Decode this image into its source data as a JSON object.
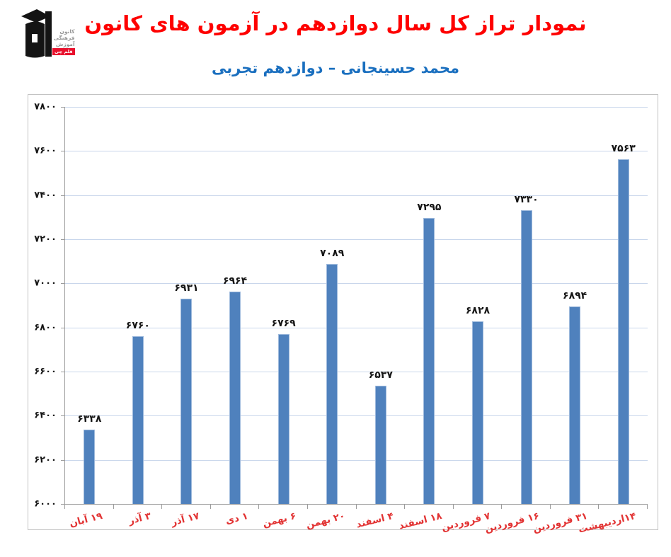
{
  "header": {
    "title": "نمودار تراز کل سال دوازدهم در آزمون های کانون",
    "subtitle": "محمد حسینجانی – دوازدهم تجربی",
    "logo": {
      "lines": [
        "کانون",
        "فرهنگی",
        "آموزش"
      ],
      "badge": "قلم چی"
    }
  },
  "chart_data": {
    "type": "bar",
    "title": "نمودار تراز کل سال دوازدهم در آزمون های کانون",
    "subtitle": "محمد حسینجانی – دوازدهم تجربی",
    "categories": [
      "۱۹ آبان",
      "۳ آذر",
      "۱۷ آذر",
      "۱ دی",
      "۶ بهمن",
      "۲۰ بهمن",
      "۴ اسفند",
      "۱۸ اسفند",
      "۷ فروردین",
      "۱۶ فروردین",
      "۳۱ فروردین",
      "۱۴اردیبهشت"
    ],
    "values": [
      6338,
      6760,
      6931,
      6964,
      6769,
      7089,
      6537,
      7295,
      6828,
      7330,
      6894,
      7563
    ],
    "value_labels_fa": [
      "۶۳۳۸",
      "۶۷۶۰",
      "۶۹۳۱",
      "۶۹۶۴",
      "۶۷۶۹",
      "۷۰۸۹",
      "۶۵۳۷",
      "۷۲۹۵",
      "۶۸۲۸",
      "۷۳۳۰",
      "۶۸۹۴",
      "۷۵۶۳"
    ],
    "ylim": [
      6000,
      7800
    ],
    "ytick_step": 200,
    "yticks_fa": [
      "۶۰۰۰",
      "۶۲۰۰",
      "۶۴۰۰",
      "۶۶۰۰",
      "۶۸۰۰",
      "۷۰۰۰",
      "۷۲۰۰",
      "۷۴۰۰",
      "۷۶۰۰",
      "۷۸۰۰"
    ],
    "xlabel": "",
    "ylabel": "",
    "grid": true,
    "legend": "none",
    "colors": {
      "bar": "#4F81BD",
      "bar_edge": "#9DB9DC",
      "grid": "#C8D6EB",
      "axis": "#9C9C9C",
      "chart_border": "#C3C3C3",
      "title": "#FE0000",
      "subtitle": "#1A6FBF",
      "xlabel": "#E23333",
      "value_label": "#151515",
      "logo_text": "#989898",
      "badge_bg": "#E8112D"
    }
  }
}
